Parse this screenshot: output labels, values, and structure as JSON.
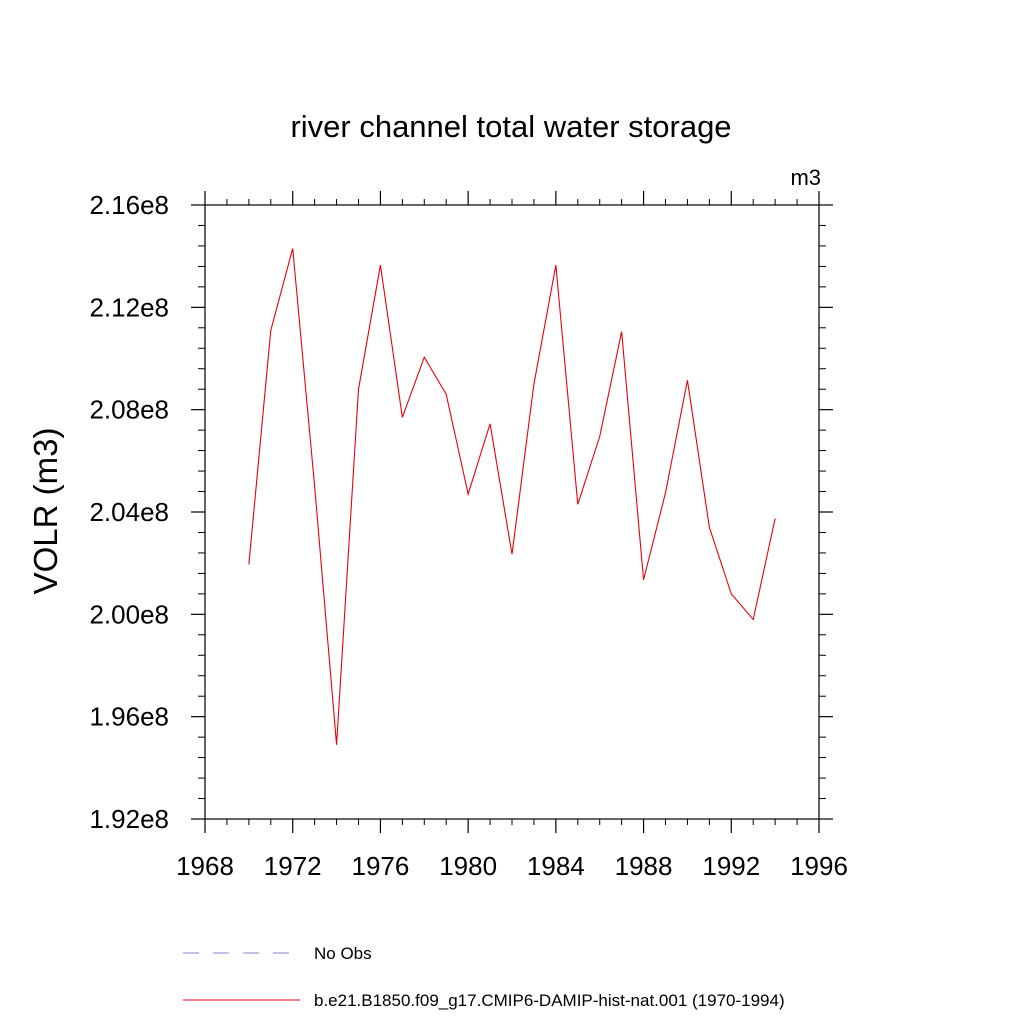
{
  "chart_data": {
    "type": "line",
    "title": "river channel total water storage",
    "units_label": "m3",
    "ylabel": "VOLR  (m3)",
    "xlabel": "",
    "xlim": [
      1968,
      1996
    ],
    "ylim": [
      192000000,
      216000000
    ],
    "x_ticks": [
      1968,
      1972,
      1976,
      1980,
      1984,
      1988,
      1992,
      1996
    ],
    "x_tick_labels": [
      "1968",
      "1972",
      "1976",
      "1980",
      "1984",
      "1988",
      "1992",
      "1996"
    ],
    "y_ticks": [
      192000000,
      196000000,
      200000000,
      204000000,
      208000000,
      212000000,
      216000000
    ],
    "y_tick_labels": [
      "1.92e8",
      "1.96e8",
      "2.00e8",
      "2.04e8",
      "2.08e8",
      "2.12e8",
      "2.16e8"
    ],
    "grid": false,
    "legend_placement": "bottom",
    "series": [
      {
        "name": "b.e21.B1850.f09_g17.CMIP6-DAMIP-hist-nat.001 (1970-1994)",
        "color": "#e8000b",
        "line_style": "solid",
        "x": [
          1970,
          1971,
          1972,
          1973,
          1974,
          1975,
          1976,
          1977,
          1978,
          1979,
          1980,
          1981,
          1982,
          1983,
          1984,
          1985,
          1986,
          1987,
          1988,
          1989,
          1990,
          1991,
          1992,
          1993,
          1994
        ],
        "y": [
          201950000,
          211100000,
          214300000,
          205000000,
          194900000,
          208800000,
          213650000,
          207700000,
          210050000,
          208600000,
          204700000,
          207450000,
          202350000,
          209000000,
          213650000,
          204300000,
          206950000,
          211050000,
          201350000,
          204750000,
          209150000,
          203400000,
          200800000,
          199800000,
          203750000
        ]
      },
      {
        "name": "No Obs",
        "color": "#8a7fc8",
        "line_style": "dashed",
        "x": [],
        "y": []
      }
    ]
  }
}
